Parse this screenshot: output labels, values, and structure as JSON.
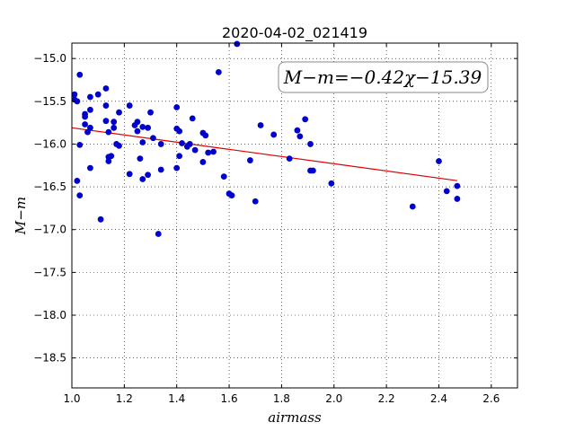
{
  "chart_data": {
    "type": "scatter",
    "title": "2020-04-02_021419",
    "xlabel": "airmass",
    "ylabel": "M−m",
    "xlim": [
      1.0,
      2.7
    ],
    "ylim": [
      -18.85,
      -14.82
    ],
    "y_inverted": true,
    "grid": true,
    "xticks": [
      "1.0",
      "1.2",
      "1.4",
      "1.6",
      "1.8",
      "2.0",
      "2.2",
      "2.4",
      "2.6"
    ],
    "yticks": [
      "−15.0",
      "−15.5",
      "−16.0",
      "−16.5",
      "−17.0",
      "−17.5",
      "−18.0",
      "−18.5"
    ],
    "annotation": "M−m=−0.42χ−15.39",
    "marker_color": "#0000cc",
    "fit_color": "#dd0000",
    "fit": {
      "slope": -0.42,
      "intercept": -15.39,
      "x_range": [
        1.0,
        2.47
      ]
    },
    "points": [
      {
        "x": 1.01,
        "y": -15.48
      },
      {
        "x": 1.01,
        "y": -15.42
      },
      {
        "x": 1.02,
        "y": -15.5
      },
      {
        "x": 1.02,
        "y": -16.43
      },
      {
        "x": 1.03,
        "y": -15.19
      },
      {
        "x": 1.03,
        "y": -16.01
      },
      {
        "x": 1.03,
        "y": -16.6
      },
      {
        "x": 1.05,
        "y": -15.77
      },
      {
        "x": 1.05,
        "y": -15.65
      },
      {
        "x": 1.05,
        "y": -15.68
      },
      {
        "x": 1.06,
        "y": -15.86
      },
      {
        "x": 1.07,
        "y": -15.81
      },
      {
        "x": 1.07,
        "y": -15.45
      },
      {
        "x": 1.07,
        "y": -15.6
      },
      {
        "x": 1.07,
        "y": -16.28
      },
      {
        "x": 1.1,
        "y": -15.42
      },
      {
        "x": 1.11,
        "y": -16.88
      },
      {
        "x": 1.13,
        "y": -15.35
      },
      {
        "x": 1.13,
        "y": -15.55
      },
      {
        "x": 1.13,
        "y": -15.73
      },
      {
        "x": 1.14,
        "y": -15.86
      },
      {
        "x": 1.14,
        "y": -16.15
      },
      {
        "x": 1.14,
        "y": -16.2
      },
      {
        "x": 1.15,
        "y": -16.14
      },
      {
        "x": 1.16,
        "y": -15.74
      },
      {
        "x": 1.16,
        "y": -15.81
      },
      {
        "x": 1.17,
        "y": -16.0
      },
      {
        "x": 1.18,
        "y": -15.63
      },
      {
        "x": 1.18,
        "y": -16.02
      },
      {
        "x": 1.22,
        "y": -15.55
      },
      {
        "x": 1.22,
        "y": -16.35
      },
      {
        "x": 1.24,
        "y": -15.78
      },
      {
        "x": 1.25,
        "y": -15.74
      },
      {
        "x": 1.25,
        "y": -15.85
      },
      {
        "x": 1.26,
        "y": -16.17
      },
      {
        "x": 1.27,
        "y": -15.98
      },
      {
        "x": 1.27,
        "y": -15.8
      },
      {
        "x": 1.27,
        "y": -16.41
      },
      {
        "x": 1.29,
        "y": -15.81
      },
      {
        "x": 1.29,
        "y": -16.36
      },
      {
        "x": 1.3,
        "y": -15.63
      },
      {
        "x": 1.31,
        "y": -15.93
      },
      {
        "x": 1.33,
        "y": -17.05
      },
      {
        "x": 1.34,
        "y": -16.3
      },
      {
        "x": 1.34,
        "y": -16.0
      },
      {
        "x": 1.4,
        "y": -15.57
      },
      {
        "x": 1.4,
        "y": -15.82
      },
      {
        "x": 1.4,
        "y": -16.28
      },
      {
        "x": 1.41,
        "y": -15.85
      },
      {
        "x": 1.41,
        "y": -16.14
      },
      {
        "x": 1.42,
        "y": -15.99
      },
      {
        "x": 1.44,
        "y": -16.03
      },
      {
        "x": 1.45,
        "y": -16.0
      },
      {
        "x": 1.46,
        "y": -15.7
      },
      {
        "x": 1.47,
        "y": -16.07
      },
      {
        "x": 1.5,
        "y": -15.87
      },
      {
        "x": 1.5,
        "y": -16.21
      },
      {
        "x": 1.51,
        "y": -15.9
      },
      {
        "x": 1.52,
        "y": -16.1
      },
      {
        "x": 1.54,
        "y": -16.09
      },
      {
        "x": 1.56,
        "y": -15.16
      },
      {
        "x": 1.58,
        "y": -16.38
      },
      {
        "x": 1.6,
        "y": -16.58
      },
      {
        "x": 1.61,
        "y": -16.6
      },
      {
        "x": 1.63,
        "y": -14.83
      },
      {
        "x": 1.68,
        "y": -16.19
      },
      {
        "x": 1.7,
        "y": -16.67
      },
      {
        "x": 1.72,
        "y": -15.78
      },
      {
        "x": 1.77,
        "y": -15.89
      },
      {
        "x": 1.83,
        "y": -16.17
      },
      {
        "x": 1.86,
        "y": -15.84
      },
      {
        "x": 1.87,
        "y": -15.91
      },
      {
        "x": 1.89,
        "y": -15.71
      },
      {
        "x": 1.91,
        "y": -16.0
      },
      {
        "x": 1.91,
        "y": -16.31
      },
      {
        "x": 1.92,
        "y": -16.31
      },
      {
        "x": 1.99,
        "y": -16.46
      },
      {
        "x": 2.3,
        "y": -16.73
      },
      {
        "x": 2.4,
        "y": -16.2
      },
      {
        "x": 2.43,
        "y": -16.55
      },
      {
        "x": 2.47,
        "y": -16.49
      },
      {
        "x": 2.47,
        "y": -16.64
      }
    ]
  }
}
